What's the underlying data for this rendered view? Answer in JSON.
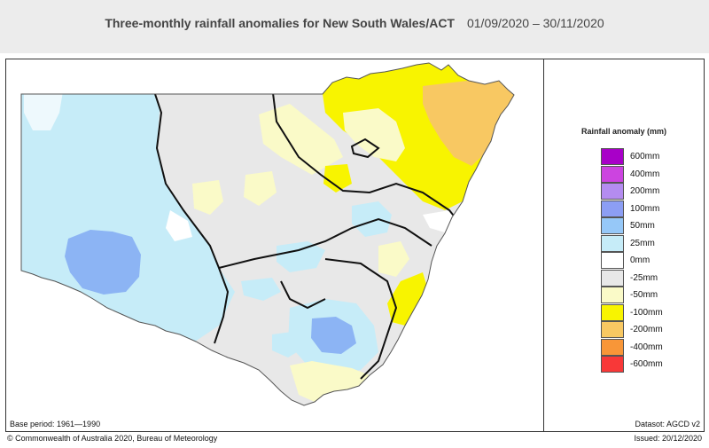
{
  "title": "Three-monthly rainfall anomalies for New South Wales/ACT",
  "period": "01/09/2020 – 30/11/2020",
  "legend": {
    "title": "Rainfall anomaly (mm)",
    "items": [
      {
        "label": "600mm",
        "color": "#a800c8"
      },
      {
        "label": "400mm",
        "color": "#cc44e0"
      },
      {
        "label": "200mm",
        "color": "#b48cf0"
      },
      {
        "label": "100mm",
        "color": "#8c9ef4"
      },
      {
        "label": "50mm",
        "color": "#96c8f8"
      },
      {
        "label": "25mm",
        "color": "#c6ecf8"
      },
      {
        "label": "0mm",
        "color": "#ffffff"
      },
      {
        "label": "-25mm",
        "color": "#e8e8e8"
      },
      {
        "label": "-50mm",
        "color": "#fafac8"
      },
      {
        "label": "-100mm",
        "color": "#f8f400"
      },
      {
        "label": "-200mm",
        "color": "#f8c862"
      },
      {
        "label": "-400mm",
        "color": "#f89638"
      },
      {
        "label": "-600mm",
        "color": "#f83838"
      }
    ]
  },
  "base_period": "Base period: 1961—1990",
  "dataset": "Datasot: AGCD v2",
  "copyright": "© Commonwealth of Australia 2020, Bureau of Meteorology",
  "issued": "Issued: 20/12/2020"
}
